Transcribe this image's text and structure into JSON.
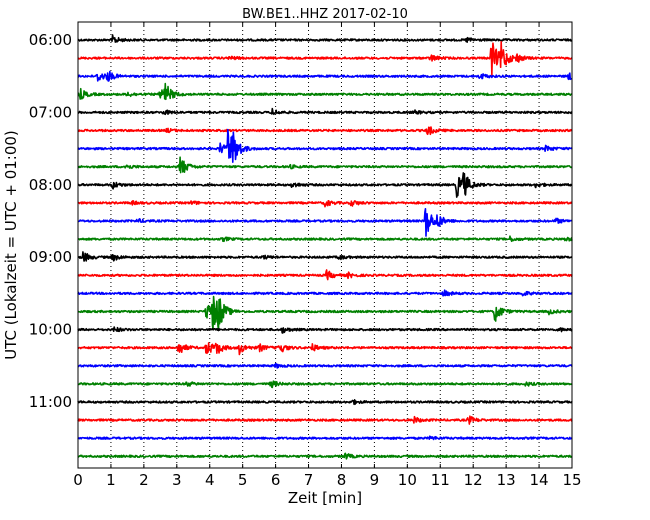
{
  "chart_data": {
    "type": "line",
    "title": "BW.BE1..HHZ 2017-02-10",
    "xlabel": "Zeit  [min]",
    "ylabel": "UTC (Lokalzeit = UTC + 01:00)",
    "xlim": [
      0,
      15
    ],
    "x_ticks": [
      "0",
      "1",
      "2",
      "3",
      "4",
      "5",
      "6",
      "7",
      "8",
      "9",
      "10",
      "11",
      "12",
      "13",
      "14",
      "15"
    ],
    "y_tick_labels": [
      "06:00",
      "07:00",
      "08:00",
      "09:00",
      "10:00",
      "11:00"
    ],
    "grid": "vertical dotted",
    "row_start": "06:00",
    "row_interval_min": 15,
    "colors": [
      "#000000",
      "#ff0000",
      "#0000ff",
      "#008000"
    ],
    "series": [
      {
        "start": "06:00",
        "color": "#000000",
        "events": [
          [
            1.05,
            0.35
          ],
          [
            11.8,
            0.2
          ]
        ]
      },
      {
        "start": "06:15",
        "color": "#ff0000",
        "events": [
          [
            4.6,
            0.15
          ],
          [
            10.7,
            0.3
          ],
          [
            12.55,
            1.6
          ],
          [
            12.85,
            1.1
          ],
          [
            13.3,
            0.35
          ]
        ]
      },
      {
        "start": "06:30",
        "color": "#0000ff",
        "events": [
          [
            0.6,
            0.5
          ],
          [
            0.9,
            0.4
          ],
          [
            12.2,
            0.25
          ],
          [
            14.9,
            0.3
          ]
        ]
      },
      {
        "start": "06:45",
        "color": "#008000",
        "events": [
          [
            0.05,
            0.5
          ],
          [
            2.5,
            0.6
          ],
          [
            2.65,
            0.7
          ],
          [
            1.5,
            0.2
          ]
        ]
      },
      {
        "start": "07:00",
        "color": "#000000",
        "events": [
          [
            2.6,
            0.2
          ],
          [
            5.9,
            0.25
          ],
          [
            10.2,
            0.15
          ]
        ]
      },
      {
        "start": "07:15",
        "color": "#ff0000",
        "events": [
          [
            10.6,
            0.45
          ],
          [
            2.7,
            0.15
          ]
        ]
      },
      {
        "start": "07:30",
        "color": "#0000ff",
        "events": [
          [
            4.3,
            0.5
          ],
          [
            4.55,
            1.7
          ],
          [
            4.7,
            0.9
          ],
          [
            14.2,
            0.25
          ]
        ]
      },
      {
        "start": "07:45",
        "color": "#008000",
        "events": [
          [
            1.45,
            0.2
          ],
          [
            3.1,
            0.9
          ],
          [
            6.4,
            0.15
          ]
        ]
      },
      {
        "start": "08:00",
        "color": "#000000",
        "events": [
          [
            1.05,
            0.3
          ],
          [
            6.5,
            0.25
          ],
          [
            11.5,
            1.0
          ],
          [
            11.7,
            0.9
          ],
          [
            13.9,
            0.2
          ]
        ]
      },
      {
        "start": "08:15",
        "color": "#ff0000",
        "events": [
          [
            1.6,
            0.15
          ],
          [
            3.45,
            0.15
          ],
          [
            7.5,
            0.3
          ],
          [
            8.3,
            0.25
          ]
        ]
      },
      {
        "start": "08:30",
        "color": "#0000ff",
        "events": [
          [
            1.8,
            0.15
          ],
          [
            10.55,
            1.5
          ],
          [
            10.9,
            0.5
          ],
          [
            14.5,
            0.2
          ]
        ]
      },
      {
        "start": "08:45",
        "color": "#008000",
        "events": [
          [
            4.4,
            0.15
          ],
          [
            13.1,
            0.2
          ],
          [
            14.8,
            0.15
          ]
        ]
      },
      {
        "start": "09:00",
        "color": "#000000",
        "events": [
          [
            0.15,
            0.45
          ],
          [
            1.05,
            0.3
          ],
          [
            5.6,
            0.15
          ],
          [
            7.9,
            0.2
          ]
        ]
      },
      {
        "start": "09:15",
        "color": "#ff0000",
        "events": [
          [
            7.55,
            0.4
          ],
          [
            8.2,
            0.2
          ]
        ]
      },
      {
        "start": "09:30",
        "color": "#0000ff",
        "events": [
          [
            11.1,
            0.25
          ],
          [
            13.5,
            0.2
          ]
        ]
      },
      {
        "start": "09:45",
        "color": "#008000",
        "events": [
          [
            3.9,
            0.9
          ],
          [
            4.1,
            1.5
          ],
          [
            4.25,
            1.0
          ],
          [
            12.65,
            0.9
          ],
          [
            14.3,
            0.2
          ]
        ]
      },
      {
        "start": "10:00",
        "color": "#000000",
        "events": [
          [
            1.1,
            0.2
          ],
          [
            6.2,
            0.25
          ],
          [
            14.6,
            0.15
          ]
        ]
      },
      {
        "start": "10:15",
        "color": "#ff0000",
        "events": [
          [
            3.05,
            0.6
          ],
          [
            3.9,
            0.7
          ],
          [
            4.2,
            0.5
          ],
          [
            4.9,
            0.5
          ],
          [
            5.5,
            0.3
          ],
          [
            6.1,
            0.5
          ],
          [
            7.1,
            0.3
          ]
        ]
      },
      {
        "start": "10:30",
        "color": "#0000ff",
        "events": [
          [
            6.0,
            0.15
          ]
        ]
      },
      {
        "start": "10:45",
        "color": "#008000",
        "events": [
          [
            3.3,
            0.2
          ],
          [
            5.85,
            0.3
          ],
          [
            13.6,
            0.15
          ]
        ]
      },
      {
        "start": "11:00",
        "color": "#000000",
        "events": [
          [
            8.3,
            0.2
          ]
        ]
      },
      {
        "start": "11:15",
        "color": "#ff0000",
        "events": [
          [
            10.2,
            0.25
          ],
          [
            11.85,
            0.35
          ]
        ]
      },
      {
        "start": "11:30",
        "color": "#0000ff",
        "events": [
          [
            10.7,
            0.15
          ]
        ]
      },
      {
        "start": "11:45",
        "color": "#008000",
        "events": [
          [
            8.1,
            0.25
          ]
        ]
      }
    ]
  }
}
